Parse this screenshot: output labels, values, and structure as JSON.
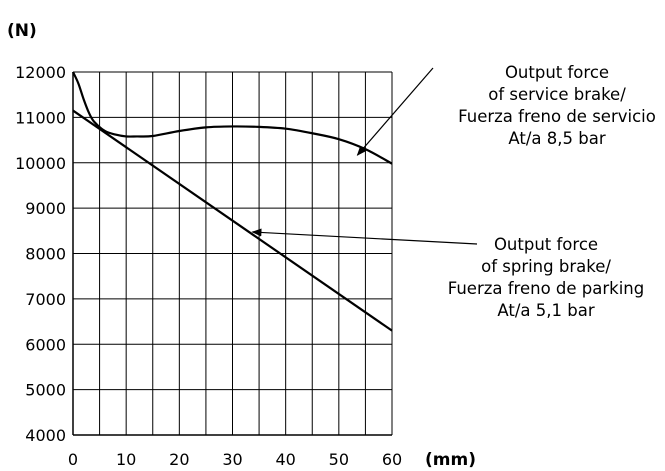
{
  "chart_data": {
    "type": "line",
    "y_unit_label": "(N)",
    "x_unit_label": "(mm)",
    "xlim": [
      0,
      60
    ],
    "ylim": [
      4000,
      12000
    ],
    "x_ticks": [
      0,
      10,
      20,
      30,
      40,
      50,
      60
    ],
    "y_ticks": [
      4000,
      5000,
      6000,
      7000,
      8000,
      9000,
      10000,
      11000,
      12000
    ],
    "grid": true,
    "series": [
      {
        "id": "service",
        "color": "#000000",
        "points": [
          [
            0,
            12000
          ],
          [
            1,
            11750
          ],
          [
            2,
            11400
          ],
          [
            3,
            11100
          ],
          [
            4,
            10900
          ],
          [
            6,
            10700
          ],
          [
            8,
            10620
          ],
          [
            10,
            10580
          ],
          [
            12,
            10580
          ],
          [
            15,
            10590
          ],
          [
            20,
            10700
          ],
          [
            25,
            10780
          ],
          [
            30,
            10800
          ],
          [
            35,
            10790
          ],
          [
            40,
            10750
          ],
          [
            45,
            10650
          ],
          [
            50,
            10520
          ],
          [
            55,
            10300
          ],
          [
            60,
            9980
          ]
        ]
      },
      {
        "id": "spring",
        "color": "#000000",
        "points": [
          [
            0,
            11150
          ],
          [
            60,
            6300
          ]
        ]
      }
    ],
    "annotations": [
      {
        "id": "service-label",
        "lines": [
          "Output force",
          "of service brake/",
          "Fuerza freno de servicio",
          "At/a 8,5 bar"
        ],
        "target": [
          55,
          10300
        ]
      },
      {
        "id": "spring-label",
        "lines": [
          "Output force",
          "of spring brake/",
          "Fuerza freno de parking",
          "At/a 5,1 bar"
        ],
        "target": [
          33,
          8430
        ]
      }
    ]
  }
}
